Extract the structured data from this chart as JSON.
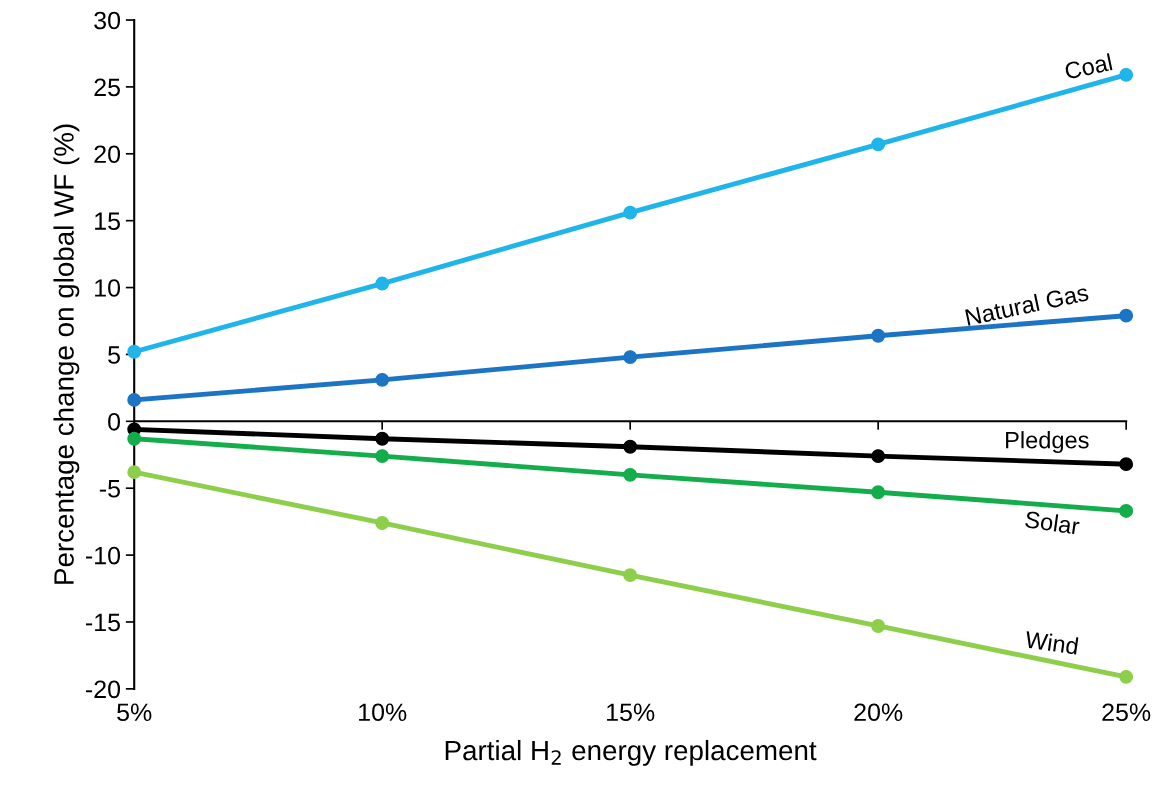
{
  "chart_data": {
    "type": "line",
    "xlabel": "Partial H$_{2}$ energy replacement",
    "ylabel": "Percentage change on global WF (%)",
    "categories": [
      "5%",
      "10%",
      "15%",
      "20%",
      "25%"
    ],
    "series": [
      {
        "name": "Coal",
        "color": "#1fb4ea",
        "values": [
          5.2,
          10.3,
          15.6,
          20.7,
          25.9
        ]
      },
      {
        "name": "Natural Gas",
        "color": "#1c74c4",
        "values": [
          1.6,
          3.1,
          4.8,
          6.4,
          7.9
        ]
      },
      {
        "name": "Pledges",
        "color": "#000000",
        "values": [
          -0.6,
          -1.3,
          -1.9,
          -2.6,
          -3.2
        ]
      },
      {
        "name": "Solar",
        "color": "#13ad4b",
        "values": [
          -1.3,
          -2.6,
          -4.0,
          -5.3,
          -6.7
        ]
      },
      {
        "name": "Wind",
        "color": "#8dcf4a",
        "values": [
          -3.8,
          -7.6,
          -11.5,
          -15.3,
          -19.1
        ]
      }
    ],
    "ylim": [
      -20,
      30
    ],
    "yticks": [
      -20,
      -15,
      -10,
      -5,
      0,
      5,
      10,
      15,
      20,
      25,
      30
    ],
    "legend": false,
    "marker": "circle",
    "line_style": "solid"
  }
}
